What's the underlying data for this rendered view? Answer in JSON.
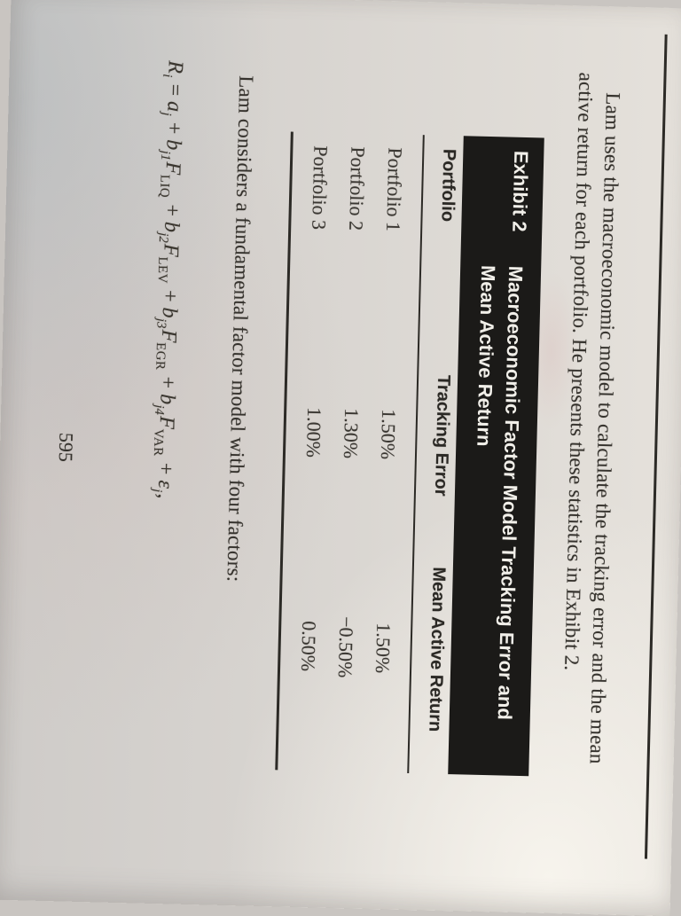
{
  "colors": {
    "paper": "#d8d4cf",
    "ink": "#35322d",
    "exhibit_bar_bg": "#1b1a18",
    "exhibit_bar_text": "#f1efe9",
    "rule": "#2c2a26"
  },
  "paragraph": {
    "line1": "Lam uses the macroeconomic model to calculate the tracking error and the mean",
    "line2": "active return for each portfolio. He presents these statistics in Exhibit 2."
  },
  "exhibit": {
    "label": "Exhibit 2",
    "title_line1": "Macroeconomic Factor Model Tracking Error and",
    "title_line2": "Mean Active Return",
    "table": {
      "headers": [
        "Portfolio",
        "Tracking Error",
        "Mean Active Return"
      ],
      "rows": [
        [
          "Portfolio 1",
          "1.50%",
          "1.50%"
        ],
        [
          "Portfolio 2",
          "1.30%",
          "−0.50%"
        ],
        [
          "Portfolio 3",
          "1.00%",
          "0.50%"
        ]
      ]
    }
  },
  "following_paragraph": "Lam considers a fundamental factor model with four factors:",
  "formula": {
    "tokens": [
      [
        "i",
        "R"
      ],
      [
        "s",
        "i"
      ],
      [
        "r",
        " = "
      ],
      [
        "i",
        "a"
      ],
      [
        "s",
        "j"
      ],
      [
        "r",
        " + "
      ],
      [
        "i",
        "b"
      ],
      [
        "s",
        "j1"
      ],
      [
        "i",
        "F"
      ],
      [
        "S",
        "LIQ"
      ],
      [
        "r",
        " + "
      ],
      [
        "i",
        "b"
      ],
      [
        "s",
        "j2"
      ],
      [
        "i",
        "F"
      ],
      [
        "S",
        "LEV"
      ],
      [
        "r",
        " + "
      ],
      [
        "i",
        "b"
      ],
      [
        "s",
        "j3"
      ],
      [
        "i",
        "F"
      ],
      [
        "S",
        "EGR"
      ],
      [
        "r",
        " + "
      ],
      [
        "i",
        "b"
      ],
      [
        "s",
        "j4"
      ],
      [
        "i",
        "F"
      ],
      [
        "S",
        "VAR"
      ],
      [
        "r",
        " + "
      ],
      [
        "i",
        "ε"
      ],
      [
        "s",
        "j"
      ],
      [
        "r",
        ","
      ]
    ]
  },
  "page_number": "595"
}
